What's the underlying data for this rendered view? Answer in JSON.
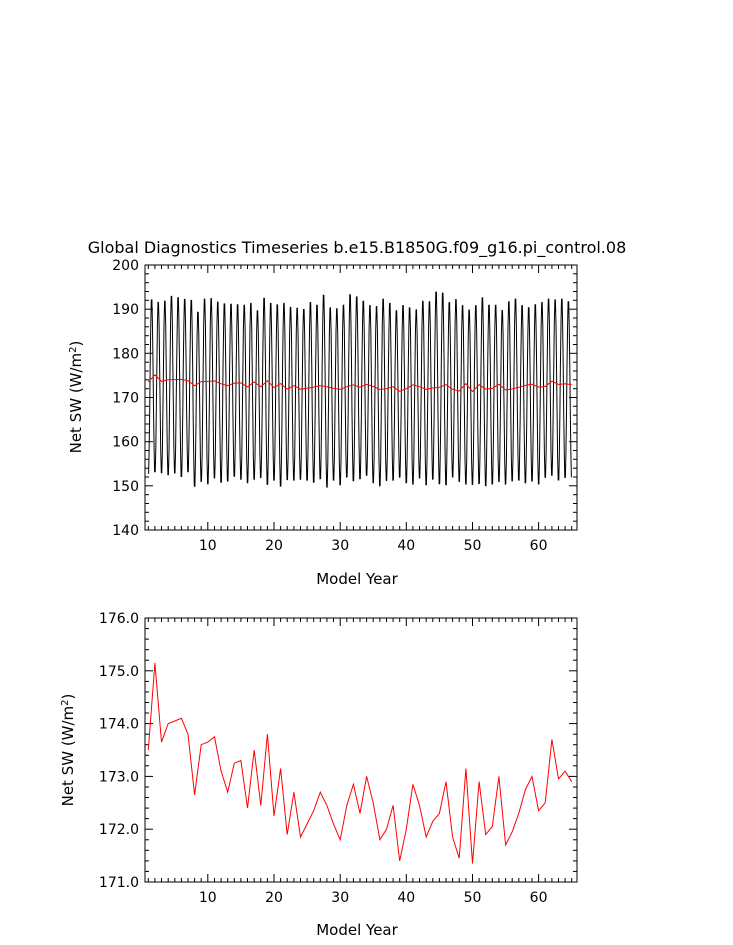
{
  "title": "Global Diagnostics Timeseries b.e15.B1850G.f09_g16.pi_control.08",
  "chart_data": [
    {
      "type": "line",
      "xlabel": "Model Year",
      "ylabel": "Net SW (W/m²)",
      "xlim": [
        0.5,
        65.8
      ],
      "ylim": [
        140,
        200
      ],
      "xticks": [
        10,
        20,
        30,
        40,
        50,
        60
      ],
      "yticks": [
        140,
        150,
        160,
        170,
        180,
        190,
        200
      ],
      "xtick_labels": [
        "10",
        "20",
        "30",
        "40",
        "50",
        "60"
      ],
      "ytick_labels": [
        "140",
        "150",
        "160",
        "170",
        "180",
        "190",
        "200"
      ],
      "grid": false,
      "series": [
        {
          "kind": "monthly",
          "color": "#000000",
          "x_start": 1,
          "amplitude_max": [
            192.8,
            192.2,
            192.5,
            193.6,
            193.3,
            192.9,
            192.7,
            190.0,
            193.0,
            193.1,
            192.3,
            191.9,
            191.8,
            191.7,
            191.6,
            192.0,
            190.3,
            193.2,
            192.0,
            191.7,
            192.0,
            191.1,
            190.9,
            190.6,
            192.2,
            191.6,
            193.9,
            191.0,
            190.8,
            191.6,
            194.0,
            193.5,
            192.5,
            191.5,
            191.3,
            193.0,
            192.0,
            190.3,
            191.5,
            191.0,
            190.5,
            192.5,
            192.4,
            194.6,
            194.4,
            192.2,
            192.9,
            191.5,
            190.5,
            191.5,
            193.3,
            191.6,
            191.6,
            190.4,
            192.4,
            193.0,
            191.5,
            191.0,
            191.7,
            192.2,
            193.0,
            192.8,
            193.0,
            192.4
          ],
          "amplitude_min": [
            152.0,
            152.5,
            152.3,
            151.8,
            152.2,
            151.4,
            152.5,
            149.2,
            150.3,
            149.7,
            151.1,
            150.1,
            150.4,
            151.5,
            150.8,
            150.0,
            150.8,
            151.2,
            149.6,
            150.6,
            149.2,
            150.7,
            150.6,
            150.8,
            150.6,
            150.1,
            150.9,
            149.0,
            150.6,
            149.5,
            151.3,
            150.4,
            150.9,
            151.7,
            150.0,
            149.3,
            150.5,
            150.6,
            151.3,
            150.0,
            149.7,
            151.1,
            149.5,
            150.8,
            149.7,
            149.5,
            151.3,
            150.3,
            149.7,
            149.6,
            149.8,
            149.3,
            149.7,
            150.3,
            149.7,
            150.4,
            150.6,
            150.0,
            150.4,
            149.7,
            151.2,
            151.7,
            150.6,
            151.2
          ]
        },
        {
          "kind": "annual",
          "color": "#ff0000",
          "x": [
            1,
            2,
            3,
            4,
            5,
            6,
            7,
            8,
            9,
            10,
            11,
            12,
            13,
            14,
            15,
            16,
            17,
            18,
            19,
            20,
            21,
            22,
            23,
            24,
            25,
            26,
            27,
            28,
            29,
            30,
            31,
            32,
            33,
            34,
            35,
            36,
            37,
            38,
            39,
            40,
            41,
            42,
            43,
            44,
            45,
            46,
            47,
            48,
            49,
            50,
            51,
            52,
            53,
            54,
            55,
            56,
            57,
            58,
            59,
            60,
            61,
            62,
            63,
            64,
            65
          ],
          "values": [
            173.5,
            175.15,
            173.65,
            174.0,
            174.05,
            174.1,
            173.8,
            172.65,
            173.6,
            173.65,
            173.75,
            173.1,
            172.7,
            173.25,
            173.3,
            172.4,
            173.5,
            172.45,
            173.8,
            172.25,
            173.15,
            171.9,
            172.7,
            171.85,
            172.1,
            172.35,
            172.7,
            172.45,
            172.1,
            171.8,
            172.45,
            172.85,
            172.3,
            173.0,
            172.5,
            171.8,
            172.0,
            172.45,
            171.4,
            172.0,
            172.85,
            172.45,
            171.85,
            172.15,
            172.3,
            172.9,
            171.85,
            171.45,
            173.15,
            171.35,
            172.9,
            171.9,
            172.05,
            173.0,
            171.7,
            171.95,
            172.3,
            172.75,
            173.0,
            172.35,
            172.5,
            173.7,
            172.95,
            173.1,
            172.9
          ]
        }
      ]
    },
    {
      "type": "line",
      "xlabel": "Model Year",
      "ylabel": "Net SW (W/m²)",
      "xlim": [
        0.5,
        65.8
      ],
      "ylim": [
        171,
        176
      ],
      "xticks": [
        10,
        20,
        30,
        40,
        50,
        60
      ],
      "yticks": [
        171,
        172,
        173,
        174,
        175,
        176
      ],
      "xtick_labels": [
        "10",
        "20",
        "30",
        "40",
        "50",
        "60"
      ],
      "ytick_labels": [
        "171.0",
        "172.0",
        "173.0",
        "174.0",
        "175.0",
        "176.0"
      ],
      "grid": false,
      "series": [
        {
          "kind": "annual",
          "color": "#ff0000",
          "x": [
            1,
            2,
            3,
            4,
            5,
            6,
            7,
            8,
            9,
            10,
            11,
            12,
            13,
            14,
            15,
            16,
            17,
            18,
            19,
            20,
            21,
            22,
            23,
            24,
            25,
            26,
            27,
            28,
            29,
            30,
            31,
            32,
            33,
            34,
            35,
            36,
            37,
            38,
            39,
            40,
            41,
            42,
            43,
            44,
            45,
            46,
            47,
            48,
            49,
            50,
            51,
            52,
            53,
            54,
            55,
            56,
            57,
            58,
            59,
            60,
            61,
            62,
            63,
            64,
            65
          ],
          "values": [
            173.5,
            175.15,
            173.65,
            174.0,
            174.05,
            174.1,
            173.8,
            172.65,
            173.6,
            173.65,
            173.75,
            173.1,
            172.7,
            173.25,
            173.3,
            172.4,
            173.5,
            172.45,
            173.8,
            172.25,
            173.15,
            171.9,
            172.7,
            171.85,
            172.1,
            172.35,
            172.7,
            172.45,
            172.1,
            171.8,
            172.45,
            172.85,
            172.3,
            173.0,
            172.5,
            171.8,
            172.0,
            172.45,
            171.4,
            172.0,
            172.85,
            172.45,
            171.85,
            172.15,
            172.3,
            172.9,
            171.85,
            171.45,
            173.15,
            171.35,
            172.9,
            171.9,
            172.05,
            173.0,
            171.7,
            171.95,
            172.3,
            172.75,
            173.0,
            172.35,
            172.5,
            173.7,
            172.95,
            173.1,
            172.9
          ]
        }
      ]
    }
  ]
}
